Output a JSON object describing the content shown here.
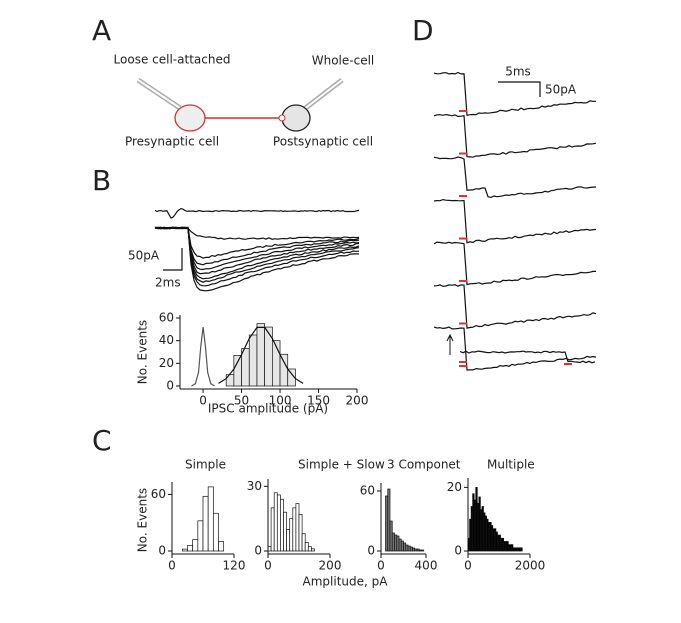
{
  "panel_labels": [
    "A",
    "B",
    "C",
    "D"
  ],
  "diagram": {
    "left_pipette": "Loose cell-attached",
    "right_pipette": "Whole-cell",
    "pre": "Presynaptic cell",
    "post": "Postsynaptic cell"
  },
  "traces_b": {
    "scale_y": "50pA",
    "scale_x": "2ms"
  },
  "traces_d": {
    "scale_x": "5ms",
    "scale_y": "50pA"
  },
  "chart_data": [
    {
      "type": "histogram",
      "xlabel": "IPSC amplitude (pA)",
      "ylabel": "No. Events",
      "bins": [
        30,
        40,
        50,
        60,
        70,
        80,
        90,
        100,
        110,
        120
      ],
      "counts": [
        10,
        27,
        33,
        45,
        55,
        52,
        40,
        28,
        15
      ],
      "color": "#e6e6e6",
      "lines": [
        {
          "x": [
            -15,
            -10,
            -6,
            -3,
            0,
            3,
            6,
            10,
            15
          ],
          "y": [
            0,
            2,
            12,
            35,
            52,
            35,
            12,
            2,
            0
          ]
        },
        {
          "x": [
            20,
            30,
            40,
            50,
            60,
            70,
            80,
            90,
            100,
            110,
            120,
            130
          ],
          "y": [
            2.3,
            6.5,
            15,
            27.8,
            42,
            51.7,
            51.7,
            42,
            27.8,
            15,
            6.5,
            2.3
          ]
        }
      ],
      "xlim": [
        -30,
        200
      ],
      "xticks": [
        0,
        50,
        100,
        150,
        200
      ],
      "ylim": [
        0,
        60
      ],
      "yticks": [
        0,
        20,
        40,
        60
      ]
    },
    {
      "type": "histogram",
      "title": "Simple",
      "ylabel": "No. Events",
      "bins": [
        20,
        30,
        40,
        50,
        60,
        70,
        80,
        90,
        100
      ],
      "counts": [
        2,
        6,
        12,
        32,
        58,
        68,
        40,
        10
      ],
      "color": "#ffffff",
      "xlim": [
        0,
        120
      ],
      "xticks": [
        0,
        120
      ],
      "ylim": [
        0,
        70
      ],
      "yticks": [
        0,
        60
      ]
    },
    {
      "type": "histogram",
      "title": "Simple + Slow",
      "xlabel": "Amplitude, pA",
      "bins": [
        0,
        10,
        20,
        30,
        40,
        50,
        60,
        70,
        80,
        90,
        100,
        110,
        120,
        130,
        140,
        150
      ],
      "counts": [
        2,
        20,
        27,
        26,
        24,
        18,
        10,
        15,
        20,
        22,
        17,
        8,
        4,
        2,
        1
      ],
      "color": "#ffffff",
      "xlim": [
        0,
        200
      ],
      "xticks": [
        0,
        200
      ],
      "ylim": [
        0,
        32
      ],
      "yticks": [
        0,
        30
      ]
    },
    {
      "type": "histogram",
      "title": "3 Componet",
      "bins": [
        40,
        60,
        80,
        100,
        120,
        140,
        160,
        180,
        200,
        220,
        240,
        260,
        280,
        300,
        320,
        340,
        360,
        380
      ],
      "counts": [
        55,
        62,
        30,
        18,
        16,
        15,
        12,
        10,
        8,
        6,
        5,
        4,
        3,
        2,
        2,
        1,
        1
      ],
      "color": "#777777",
      "xlim": [
        0,
        400
      ],
      "xticks": [
        0,
        400
      ],
      "ylim": [
        0,
        65
      ],
      "yticks": [
        0,
        60
      ]
    },
    {
      "type": "histogram",
      "title": "Multiple",
      "bins": [
        0,
        50,
        100,
        150,
        200,
        250,
        300,
        350,
        400,
        450,
        500,
        550,
        600,
        650,
        700,
        750,
        800,
        850,
        900,
        950,
        1000,
        1050,
        1100,
        1150,
        1200,
        1250,
        1300,
        1350,
        1400,
        1450,
        1500,
        1550,
        1600,
        1650,
        1700,
        1750
      ],
      "counts": [
        4,
        10,
        14,
        18,
        16,
        20,
        15,
        17,
        13,
        14,
        12,
        11,
        10,
        9,
        9,
        8,
        7,
        7,
        6,
        5,
        5,
        4,
        4,
        3,
        3,
        3,
        2,
        2,
        2,
        1,
        1,
        1,
        1,
        1,
        1
      ],
      "color": "#000000",
      "xlim": [
        0,
        2000
      ],
      "xticks": [
        0,
        2000
      ],
      "ylim": [
        0,
        22
      ],
      "yticks": [
        0,
        20
      ]
    }
  ]
}
